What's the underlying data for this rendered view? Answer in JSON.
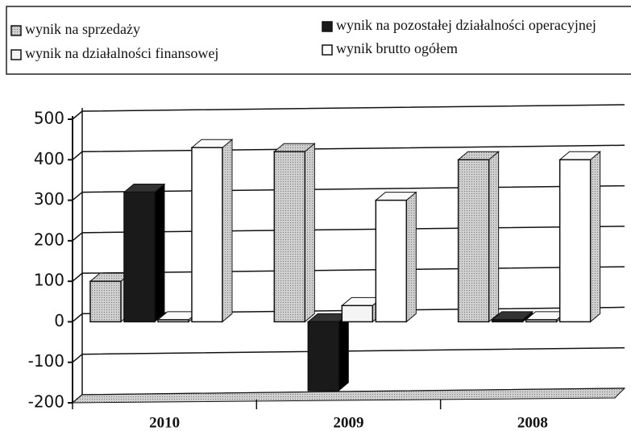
{
  "chart_data": {
    "type": "bar3d",
    "categories": [
      "2010",
      "2009",
      "2008"
    ],
    "series": [
      {
        "name": "wynik na sprzedaży",
        "color": "#b8b8b8",
        "values": [
          100,
          420,
          400
        ]
      },
      {
        "name": "wynik na pozostałej działalności operacyjnej",
        "color": "#1a1a1a",
        "values": [
          320,
          -170,
          5
        ]
      },
      {
        "name": "wynik na działalności finansowej",
        "color": "#f4f4f4",
        "values": [
          5,
          40,
          5
        ]
      },
      {
        "name": "wynik brutto ogółem",
        "color": "#ffffff",
        "values": [
          430,
          300,
          400
        ]
      }
    ],
    "ylim": [
      -200,
      500
    ],
    "yticks": [
      -200,
      -100,
      0,
      100,
      200,
      300,
      400,
      500
    ],
    "grid": true
  }
}
